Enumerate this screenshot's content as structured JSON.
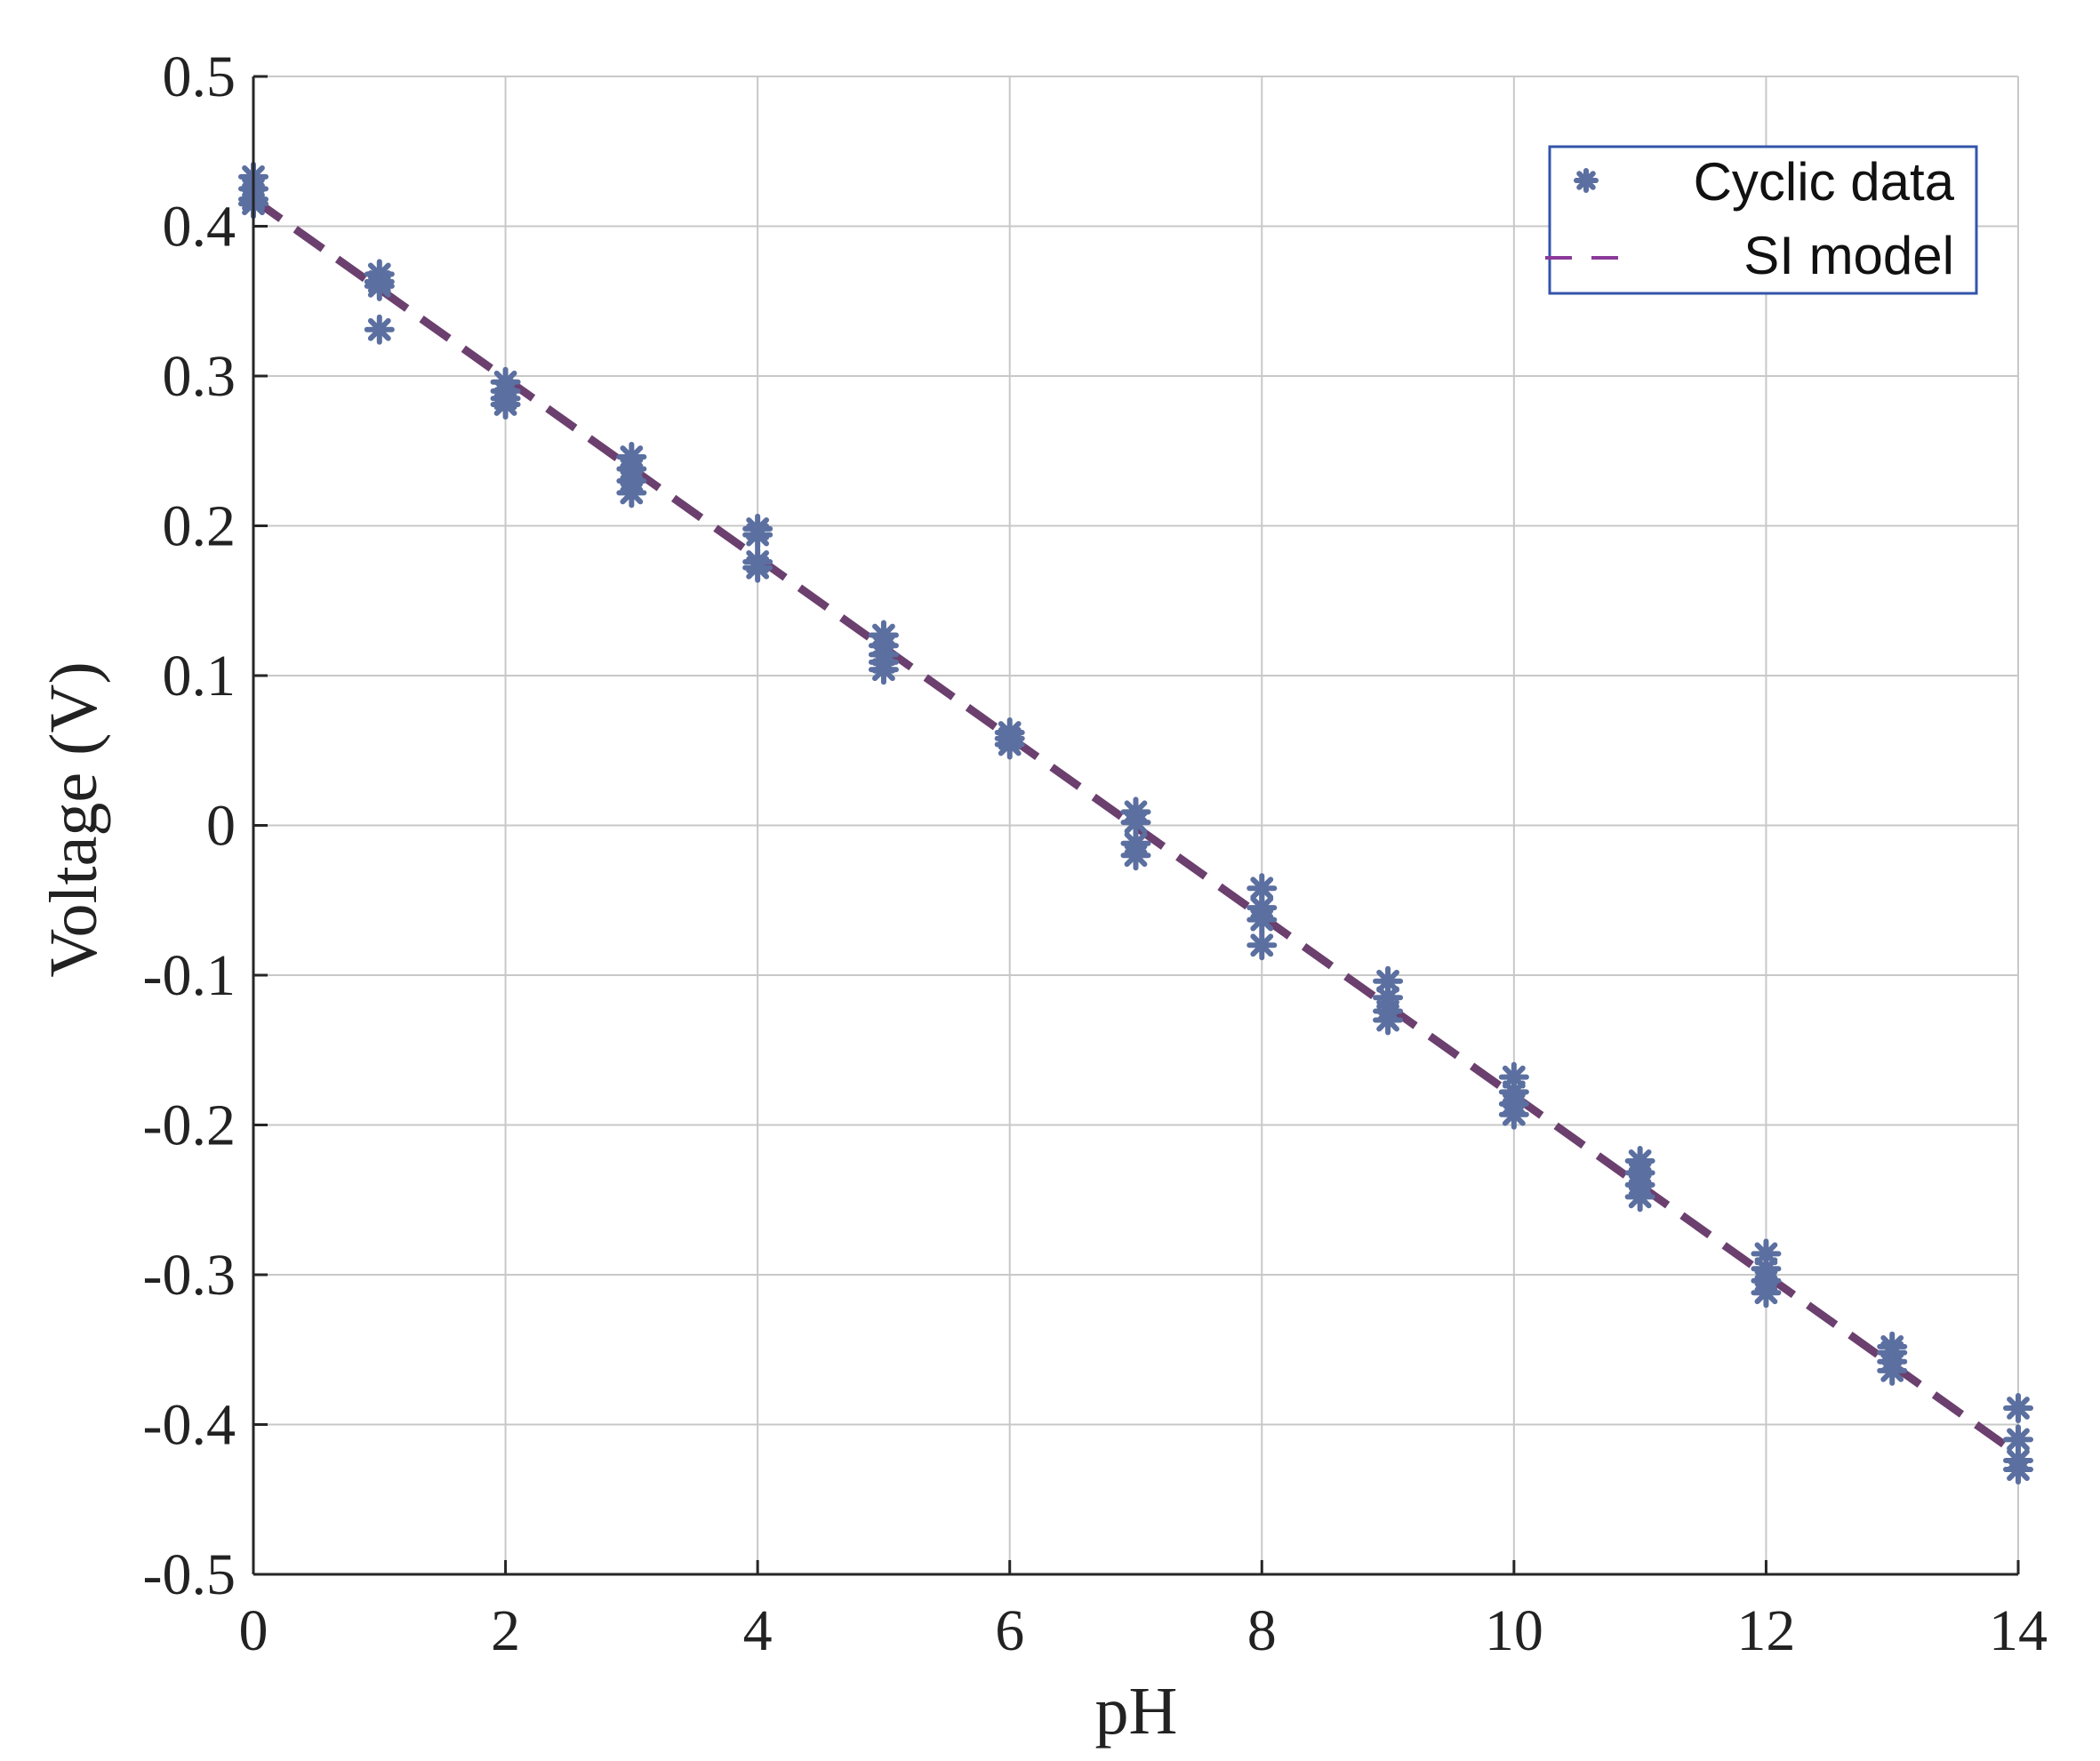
{
  "chart_data": {
    "type": "scatter",
    "xlabel": "pH",
    "ylabel": "Voltage (V)",
    "xlim": [
      0,
      14
    ],
    "ylim": [
      -0.5,
      0.5
    ],
    "xticks": [
      0,
      2,
      4,
      6,
      8,
      10,
      12,
      14
    ],
    "xtick_labels": [
      "0",
      "2",
      "4",
      "6",
      "8",
      "10",
      "12",
      "14"
    ],
    "yticks": [
      0.5,
      0.4,
      0.3,
      0.2,
      0.1,
      0,
      -0.1,
      -0.2,
      -0.3,
      -0.4,
      -0.5
    ],
    "ytick_labels": [
      "0.5",
      "0.4",
      "0.3",
      "0.2",
      "0.1",
      "0",
      "-0.1",
      "-0.2",
      "-0.3",
      "-0.4",
      "-0.5"
    ],
    "grid": true,
    "legend_position": "top-right",
    "colors": {
      "data": "#5b6fa0",
      "model": "#6b3f6e",
      "legend_model": "#8b3a9a",
      "legend_border": "#3355aa",
      "grid": "#c8c8c8",
      "axis": "#262626"
    },
    "series": [
      {
        "name": "Cyclic data",
        "kind": "scatter",
        "marker": "asterisk",
        "points": [
          [
            0,
            0.433
          ],
          [
            0,
            0.425
          ],
          [
            0,
            0.418
          ],
          [
            0,
            0.415
          ],
          [
            1,
            0.368
          ],
          [
            1,
            0.363
          ],
          [
            1,
            0.36
          ],
          [
            1,
            0.331
          ],
          [
            2,
            0.296
          ],
          [
            2,
            0.29
          ],
          [
            2,
            0.285
          ],
          [
            2,
            0.281
          ],
          [
            3,
            0.246
          ],
          [
            3,
            0.238
          ],
          [
            3,
            0.23
          ],
          [
            3,
            0.222
          ],
          [
            4,
            0.198
          ],
          [
            4,
            0.194
          ],
          [
            4,
            0.176
          ],
          [
            4,
            0.172
          ],
          [
            5,
            0.127
          ],
          [
            5,
            0.12
          ],
          [
            5,
            0.114
          ],
          [
            5,
            0.109
          ],
          [
            5,
            0.104
          ],
          [
            6,
            0.062
          ],
          [
            6,
            0.058
          ],
          [
            6,
            0.054
          ],
          [
            7,
            0.009
          ],
          [
            7,
            0.002
          ],
          [
            7,
            -0.012
          ],
          [
            7,
            -0.02
          ],
          [
            8,
            -0.042
          ],
          [
            8,
            -0.055
          ],
          [
            8,
            -0.063
          ],
          [
            8,
            -0.08
          ],
          [
            9,
            -0.104
          ],
          [
            9,
            -0.115
          ],
          [
            9,
            -0.124
          ],
          [
            9,
            -0.13
          ],
          [
            10,
            -0.168
          ],
          [
            10,
            -0.178
          ],
          [
            10,
            -0.186
          ],
          [
            10,
            -0.193
          ],
          [
            11,
            -0.224
          ],
          [
            11,
            -0.232
          ],
          [
            11,
            -0.24
          ],
          [
            11,
            -0.248
          ],
          [
            12,
            -0.286
          ],
          [
            12,
            -0.296
          ],
          [
            12,
            -0.304
          ],
          [
            12,
            -0.312
          ],
          [
            13,
            -0.348
          ],
          [
            13,
            -0.352
          ],
          [
            13,
            -0.358
          ],
          [
            13,
            -0.364
          ],
          [
            14,
            -0.389
          ],
          [
            14,
            -0.41
          ],
          [
            14,
            -0.424
          ],
          [
            14,
            -0.43
          ]
        ]
      },
      {
        "name": "SI model",
        "kind": "line",
        "style": "dashed",
        "points": [
          [
            0,
            0.418
          ],
          [
            14,
            -0.42
          ]
        ]
      }
    ]
  }
}
